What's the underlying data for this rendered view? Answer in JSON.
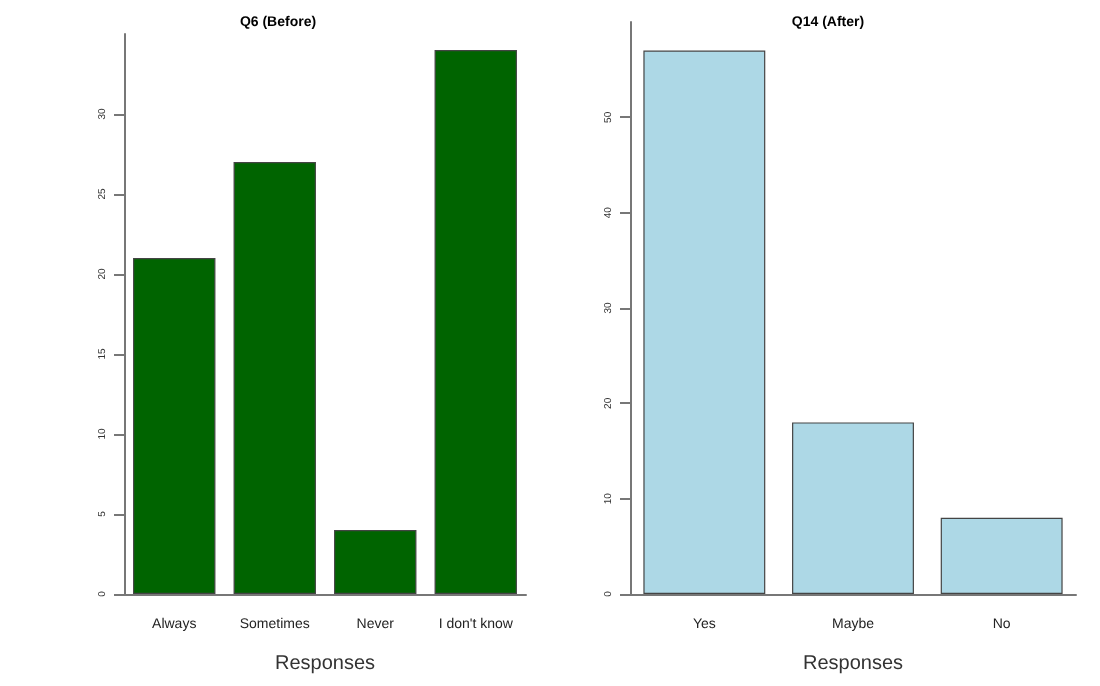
{
  "chart_data": [
    {
      "type": "bar",
      "title": "Q6 (Before)",
      "xlabel": "Responses",
      "categories": [
        "Always",
        "Sometimes",
        "Never",
        "I don't know"
      ],
      "values": [
        21,
        27,
        4,
        34
      ],
      "color": "#006400",
      "ylim": [
        0,
        35
      ],
      "yticks": [
        0,
        5,
        10,
        15,
        20,
        25,
        30
      ],
      "grid": false
    },
    {
      "type": "bar",
      "title": "Q14 (After)",
      "xlabel": "Responses",
      "categories": [
        "Yes",
        "Maybe",
        "No"
      ],
      "values": [
        57,
        18,
        8
      ],
      "color": "#add8e6",
      "ylim": [
        0,
        60
      ],
      "yticks": [
        0,
        10,
        20,
        30,
        40,
        50
      ],
      "grid": false
    }
  ]
}
